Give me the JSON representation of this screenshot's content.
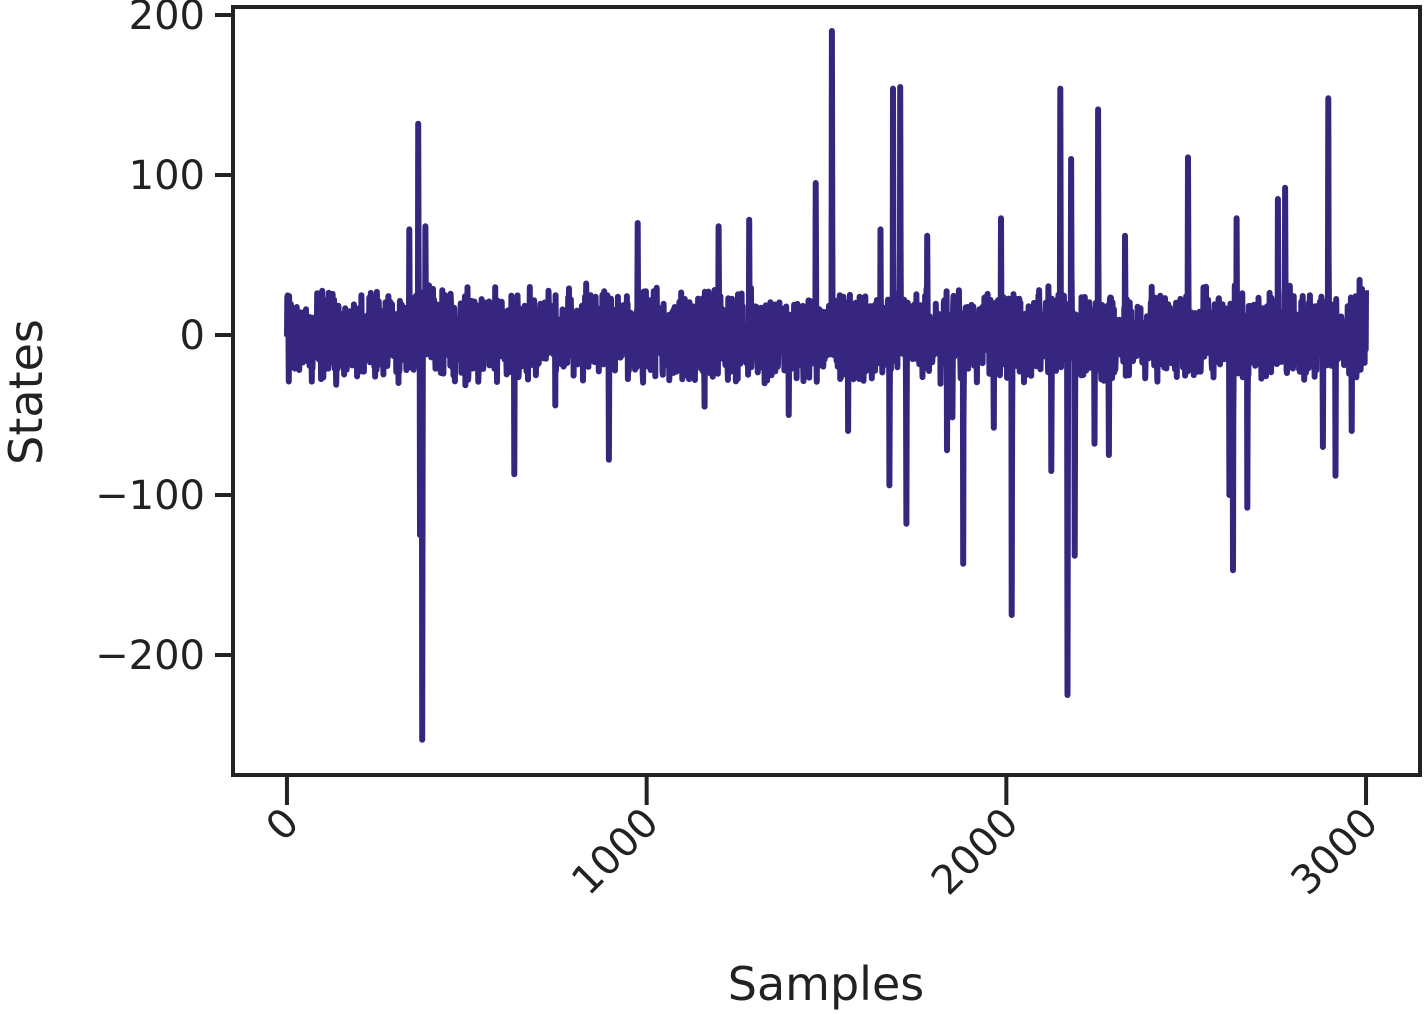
{
  "chart_data": {
    "type": "line",
    "title": "",
    "xlabel": "Samples",
    "ylabel": "States",
    "xlim": [
      -150,
      3150
    ],
    "ylim": [
      -275,
      205
    ],
    "x_ticks": [
      0,
      1000,
      2000,
      3000
    ],
    "x_tick_labels": [
      "0",
      "1000",
      "2000",
      "3000"
    ],
    "y_ticks": [
      -200,
      -100,
      0,
      100,
      200
    ],
    "y_tick_labels": [
      "−200",
      "−100",
      "0",
      "100",
      "200"
    ],
    "x_tick_rotation_deg": -45,
    "grid": false,
    "legend": "none",
    "series": [
      {
        "color": "#36267f",
        "n_samples": 3000,
        "base_amplitude": 20,
        "note_points_are_peaks": true,
        "peaks": [
          {
            "x": 365,
            "y": 132
          },
          {
            "x": 370,
            "y": -125
          },
          {
            "x": 376,
            "y": -253
          },
          {
            "x": 385,
            "y": 68
          },
          {
            "x": 340,
            "y": 66
          },
          {
            "x": 632,
            "y": -87
          },
          {
            "x": 895,
            "y": -78
          },
          {
            "x": 975,
            "y": 70
          },
          {
            "x": 1200,
            "y": 68
          },
          {
            "x": 1285,
            "y": 72
          },
          {
            "x": 1395,
            "y": -50
          },
          {
            "x": 1470,
            "y": 95
          },
          {
            "x": 1515,
            "y": 190
          },
          {
            "x": 1560,
            "y": -60
          },
          {
            "x": 1650,
            "y": 66
          },
          {
            "x": 1675,
            "y": -94
          },
          {
            "x": 1685,
            "y": 154
          },
          {
            "x": 1705,
            "y": 155
          },
          {
            "x": 1722,
            "y": -118
          },
          {
            "x": 1780,
            "y": 62
          },
          {
            "x": 1835,
            "y": -72
          },
          {
            "x": 1880,
            "y": -143
          },
          {
            "x": 1965,
            "y": -58
          },
          {
            "x": 1985,
            "y": 73
          },
          {
            "x": 2015,
            "y": -175
          },
          {
            "x": 2125,
            "y": -85
          },
          {
            "x": 2150,
            "y": 154
          },
          {
            "x": 2170,
            "y": -225
          },
          {
            "x": 2180,
            "y": 110
          },
          {
            "x": 2190,
            "y": -138
          },
          {
            "x": 2245,
            "y": -68
          },
          {
            "x": 2255,
            "y": 141
          },
          {
            "x": 2285,
            "y": -75
          },
          {
            "x": 2330,
            "y": 62
          },
          {
            "x": 2505,
            "y": 111
          },
          {
            "x": 2620,
            "y": -100
          },
          {
            "x": 2630,
            "y": -147
          },
          {
            "x": 2640,
            "y": 73
          },
          {
            "x": 2670,
            "y": -108
          },
          {
            "x": 2755,
            "y": 85
          },
          {
            "x": 2775,
            "y": 92
          },
          {
            "x": 2880,
            "y": -70
          },
          {
            "x": 2895,
            "y": 148
          },
          {
            "x": 2915,
            "y": -88
          },
          {
            "x": 2960,
            "y": -60
          },
          {
            "x": 3000,
            "y": 28
          }
        ]
      }
    ]
  }
}
